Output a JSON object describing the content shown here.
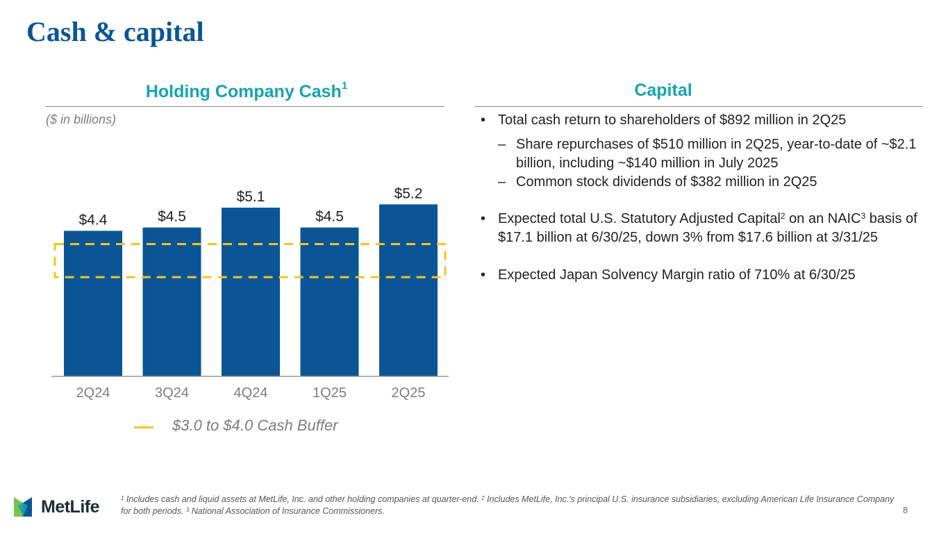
{
  "page": {
    "title": "Cash & capital",
    "page_number": "8"
  },
  "left_panel": {
    "title": "Holding Company Cash",
    "title_footnote": "1",
    "units": "($ in billions)"
  },
  "chart_data": {
    "type": "bar",
    "title": "Holding Company Cash",
    "units": "$ in billions",
    "categories": [
      "2Q24",
      "3Q24",
      "4Q24",
      "1Q25",
      "2Q25"
    ],
    "values": [
      4.4,
      4.5,
      5.1,
      4.5,
      5.2
    ],
    "data_labels": [
      "$4.4",
      "$4.5",
      "$5.1",
      "$4.5",
      "$5.2"
    ],
    "ylim": [
      0,
      5.5
    ],
    "grid": false,
    "bar_color": "#0a5596",
    "buffer": {
      "low": 3.0,
      "high": 4.0,
      "label": "$3.0 to $4.0 Cash Buffer",
      "color": "#f5c41c"
    }
  },
  "right_panel": {
    "title": "Capital",
    "bullets": [
      {
        "text": "Total cash return to shareholders of $892 million in 2Q25",
        "sub": [
          "Share repurchases of $510 million in 2Q25, year-to-date of ~$2.1 billion, including ~$140 million in July 2025",
          "Common stock dividends of $382 million in 2Q25"
        ]
      },
      {
        "text_a": "Expected total U.S. Statutory Adjusted Capital",
        "sup_a": "2",
        "text_b": " on an NAIC",
        "sup_b": "3",
        "text_c": " basis of $17.1 billion at 6/30/25, down 3% from $17.6 billion at 3/31/25"
      },
      {
        "text": "Expected Japan Solvency Margin ratio of 710% at 6/30/25"
      }
    ]
  },
  "footer": {
    "logo_text": "MetLife",
    "footnote_1_num": "1",
    "footnote_1": " Includes cash and liquid assets at MetLife, Inc. and other holding companies at quarter-end. ",
    "footnote_2_num": "2",
    "footnote_2": " Includes MetLife, Inc.'s principal U.S. insurance subsidiaries, excluding American Life Insurance Company for both periods. ",
    "footnote_3_num": "3",
    "footnote_3": " National Association of Insurance Commissioners."
  },
  "colors": {
    "title": "#0a5596",
    "accent": "#16a3b2",
    "bar": "#0a5596",
    "buffer": "#f5c41c",
    "logo_blue": "#0a5596",
    "logo_green": "#7cc24a",
    "logo_teal": "#16a3b2"
  }
}
